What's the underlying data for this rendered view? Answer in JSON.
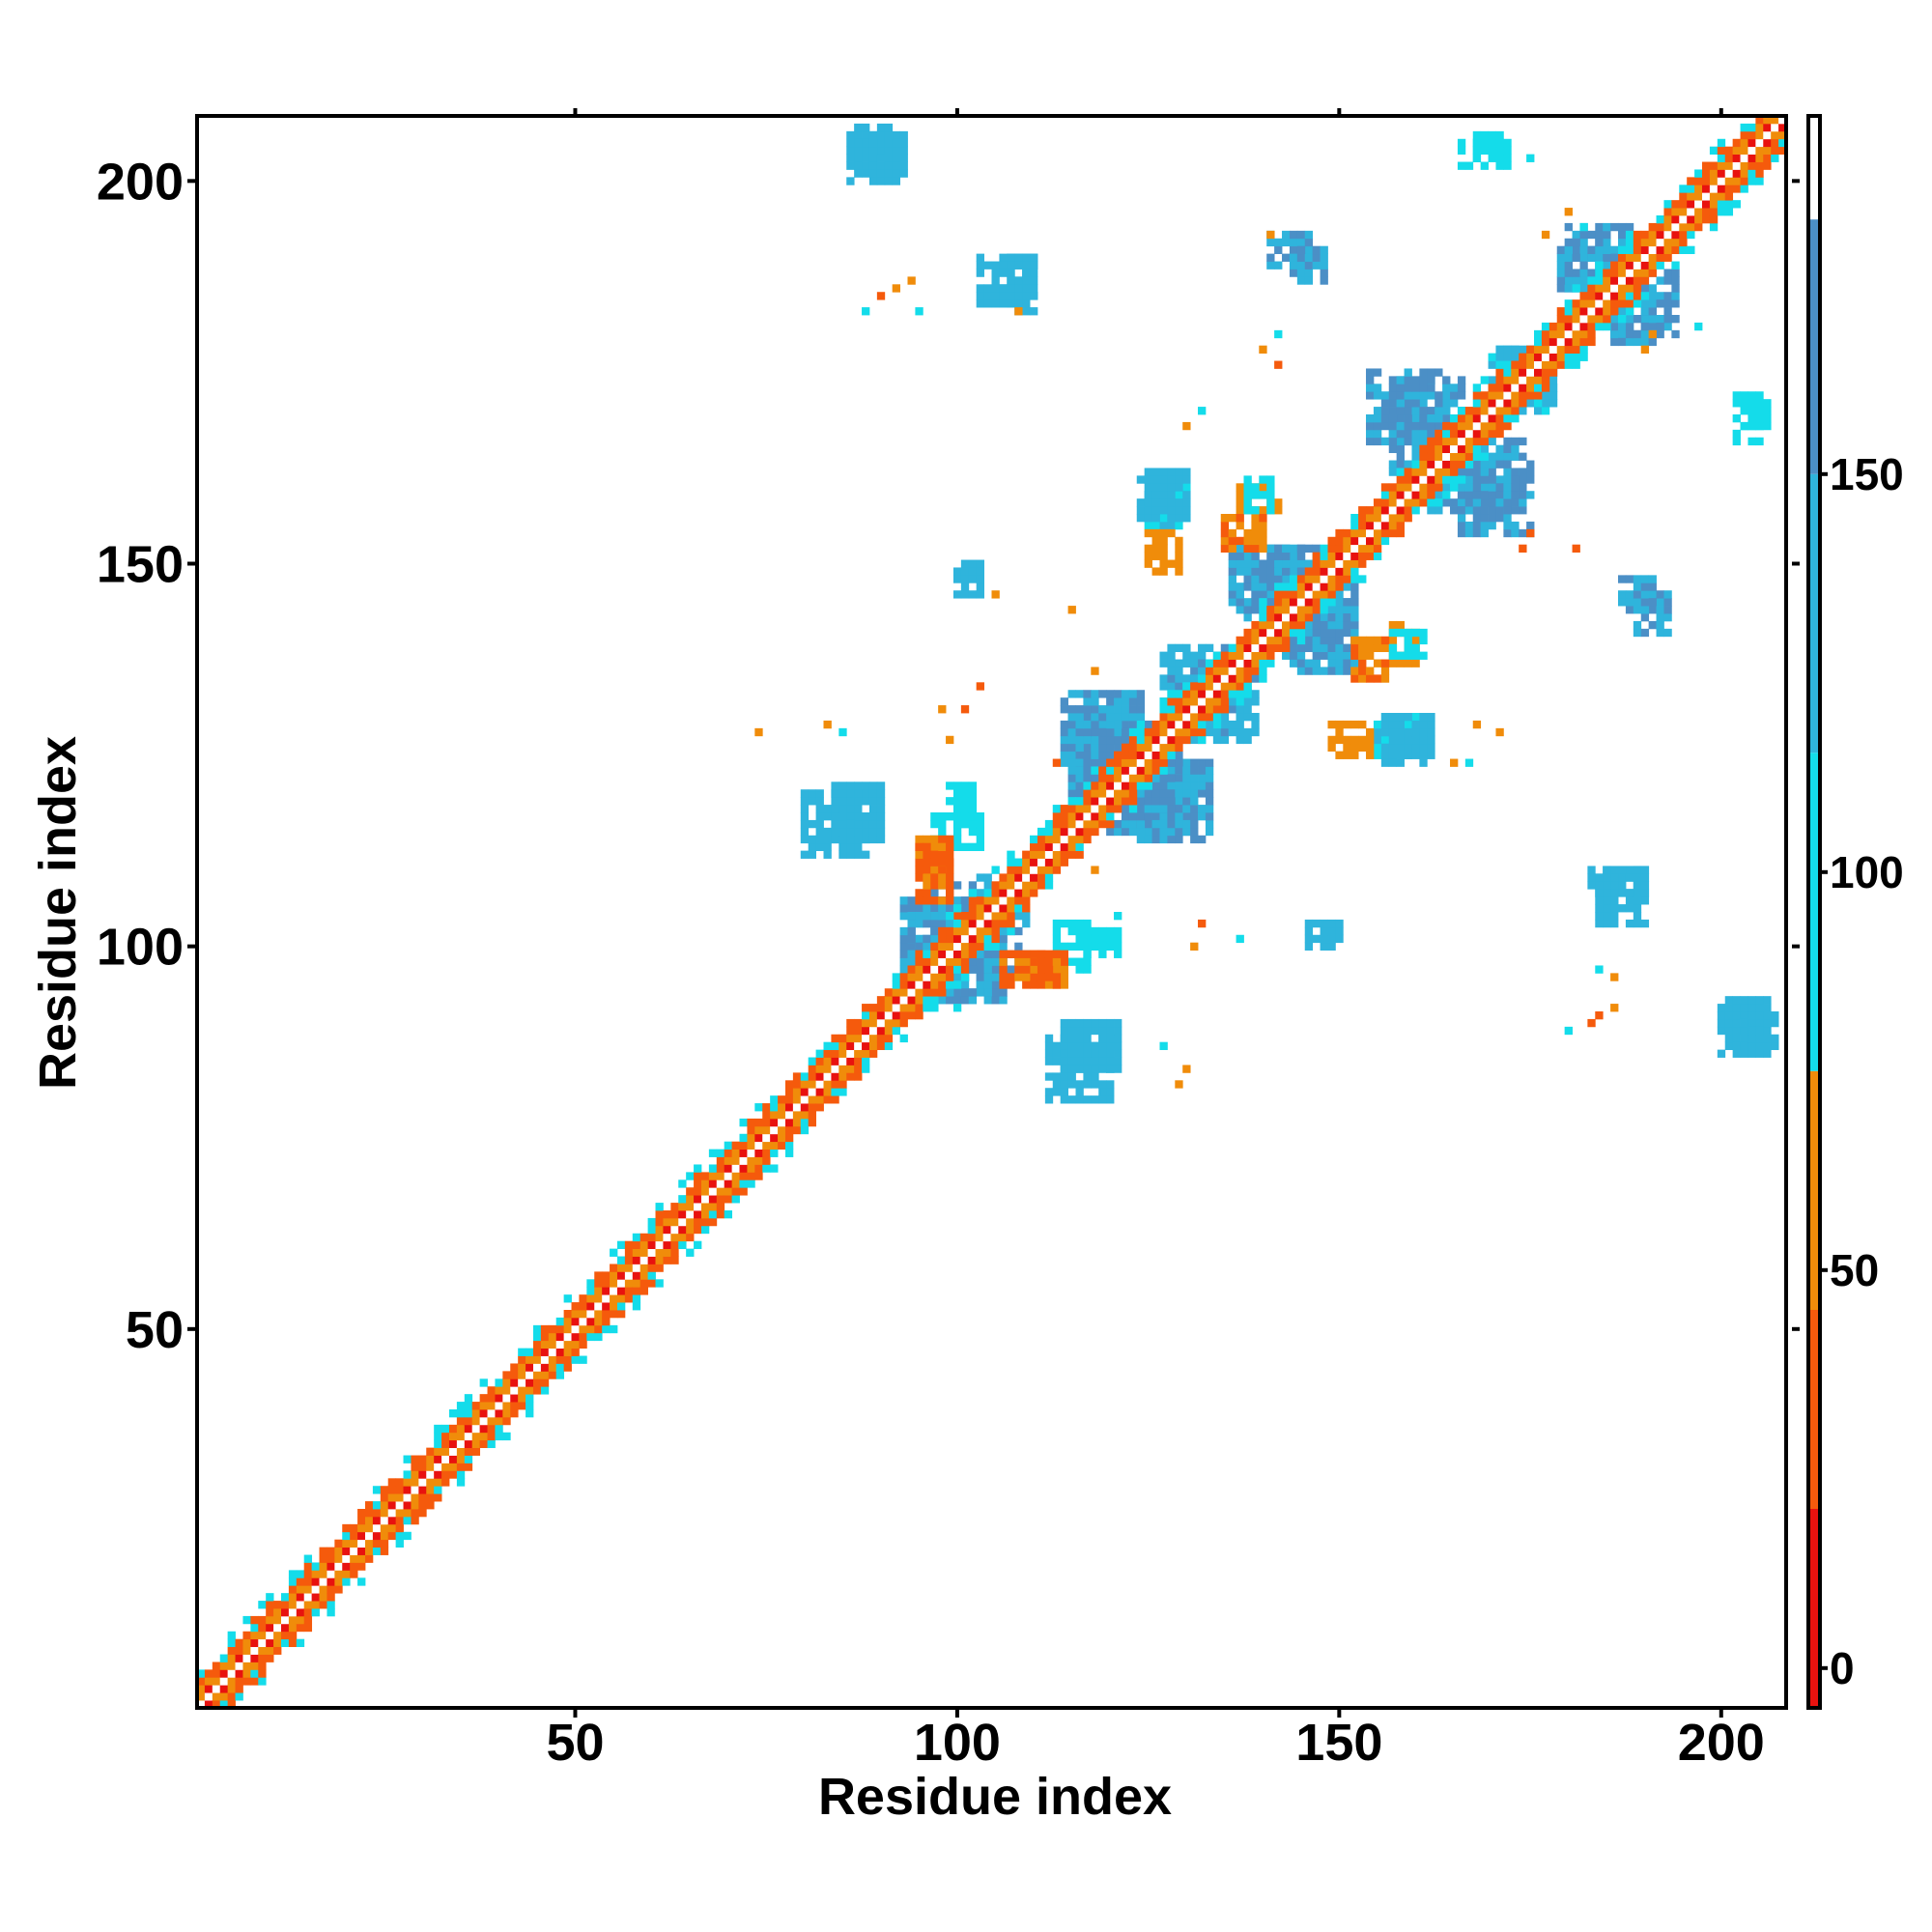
{
  "chart_data": {
    "type": "heatmap",
    "title": "",
    "xlabel": "Residue index",
    "ylabel": "Residue index",
    "xlim": [
      1,
      208
    ],
    "ylim": [
      1,
      208
    ],
    "x_ticks": [
      50,
      100,
      150,
      200
    ],
    "y_ticks": [
      50,
      100,
      150,
      200
    ],
    "x_tick_labels": [
      "50",
      "100",
      "150",
      "200"
    ],
    "y_tick_labels": [
      "50",
      "100",
      "150",
      "200"
    ],
    "grid": false,
    "legend": "colorbar-right",
    "colorbar": {
      "range": [
        -5,
        195
      ],
      "ticks": [
        0,
        50,
        100,
        150
      ],
      "tick_labels": [
        "0",
        "50",
        "100",
        "150"
      ],
      "bands": [
        {
          "from": -5,
          "to": 20,
          "color": "#e8120f"
        },
        {
          "from": 20,
          "to": 45,
          "color": "#f55a0c"
        },
        {
          "from": 45,
          "to": 75,
          "color": "#f08c0a"
        },
        {
          "from": 75,
          "to": 115,
          "color": "#14dcea"
        },
        {
          "from": 115,
          "to": 150,
          "color": "#2fb4dc"
        },
        {
          "from": 150,
          "to": 182,
          "color": "#4b8fc6"
        },
        {
          "from": 182,
          "to": 195,
          "color": "#ffffff"
        }
      ]
    },
    "diagonal_band": {
      "from": 1,
      "to": 208,
      "half_width": 5
    },
    "clusters": [
      {
        "x": [
          86,
          93
        ],
        "y": [
          200,
          206
        ],
        "value": 140
      },
      {
        "x": [
          166,
          172
        ],
        "y": [
          202,
          205
        ],
        "value": 105
      },
      {
        "x": [
          203,
          206
        ],
        "y": [
          168,
          171
        ],
        "value": 105
      },
      {
        "x": [
          202,
          207
        ],
        "y": [
          87,
          92
        ],
        "value": 140
      },
      {
        "x": [
          93,
          104
        ],
        "y": [
          94,
          106
        ],
        "value": 150
      },
      {
        "x": [
          102,
          109
        ],
        "y": [
          97,
          104
        ],
        "value": 150
      },
      {
        "x": [
          115,
          125
        ],
        "y": [
          120,
          130
        ],
        "value": 150
      },
      {
        "x": [
          124,
          133
        ],
        "y": [
          114,
          124
        ],
        "value": 150
      },
      {
        "x": [
          127,
          137
        ],
        "y": [
          130,
          139
        ],
        "value": 145
      },
      {
        "x": [
          137,
          147
        ],
        "y": [
          143,
          152
        ],
        "value": 150
      },
      {
        "x": [
          145,
          152
        ],
        "y": [
          136,
          145
        ],
        "value": 150
      },
      {
        "x": [
          157,
          166
        ],
        "y": [
          162,
          174
        ],
        "value": 150
      },
      {
        "x": [
          166,
          175
        ],
        "y": [
          154,
          163
        ],
        "value": 150
      },
      {
        "x": [
          171,
          178
        ],
        "y": [
          170,
          178
        ],
        "value": 120
      },
      {
        "x": [
          180,
          188
        ],
        "y": [
          186,
          194
        ],
        "value": 150
      },
      {
        "x": [
          186,
          192
        ],
        "y": [
          179,
          186
        ],
        "value": 150
      },
      {
        "x": [
          80,
          88
        ],
        "y": [
          112,
          120
        ],
        "value": 140
      },
      {
        "x": [
          114,
          121
        ],
        "y": [
          84,
          90
        ],
        "value": 140
      },
      {
        "x": [
          125,
          130
        ],
        "y": [
          155,
          160
        ],
        "value": 115
      },
      {
        "x": [
          156,
          162
        ],
        "y": [
          124,
          130
        ],
        "value": 140
      },
      {
        "x": [
          97,
          103
        ],
        "y": [
          113,
          117
        ],
        "value": 100
      },
      {
        "x": [
          103,
          110
        ],
        "y": [
          184,
          190
        ],
        "value": 140
      },
      {
        "x": [
          141,
          146
        ],
        "y": [
          189,
          193
        ],
        "value": 150
      },
      {
        "x": [
          183,
          190
        ],
        "y": [
          106,
          110
        ],
        "value": 140
      },
      {
        "x": [
          187,
          191
        ],
        "y": [
          144,
          148
        ],
        "value": 155
      },
      {
        "x": [
          137,
          142
        ],
        "y": [
          157,
          160
        ],
        "value": 60
      },
      {
        "x": [
          135,
          140
        ],
        "y": [
          152,
          156
        ],
        "value": 45
      },
      {
        "x": [
          149,
          154
        ],
        "y": [
          125,
          129
        ],
        "value": 60
      },
      {
        "x": [
          95,
          99
        ],
        "y": [
          110,
          114
        ],
        "value": 45
      },
      {
        "x": [
          146,
          150
        ],
        "y": [
          100,
          103
        ],
        "value": 140
      },
      {
        "x": [
          157,
          161
        ],
        "y": [
          138,
          141
        ],
        "value": 105
      },
      {
        "x": [
          106,
          113
        ],
        "y": [
          95,
          99
        ],
        "value": 40
      },
      {
        "x": [
          116,
          121
        ],
        "y": [
          99,
          102
        ],
        "value": 105
      }
    ],
    "specks": [
      [
        90,
        185,
        30
      ],
      [
        92,
        186,
        60
      ],
      [
        94,
        187,
        60
      ],
      [
        88,
        183,
        100
      ],
      [
        95,
        183,
        100
      ],
      [
        108,
        183,
        60
      ],
      [
        141,
        193,
        60
      ],
      [
        142,
        176,
        25
      ],
      [
        140,
        178,
        60
      ],
      [
        142,
        180,
        100
      ],
      [
        177,
        193,
        60
      ],
      [
        180,
        196,
        60
      ],
      [
        182,
        194,
        100
      ],
      [
        175,
        203,
        105
      ],
      [
        191,
        180,
        60
      ],
      [
        190,
        178,
        60
      ],
      [
        197,
        181,
        100
      ],
      [
        132,
        170,
        105
      ],
      [
        130,
        168,
        60
      ],
      [
        118,
        136,
        60
      ],
      [
        101,
        131,
        30
      ],
      [
        98,
        131,
        60
      ],
      [
        103,
        134,
        25
      ],
      [
        99,
        127,
        60
      ],
      [
        83,
        129,
        60
      ],
      [
        85,
        128,
        100
      ],
      [
        74,
        128,
        60
      ],
      [
        100,
        104,
        25
      ],
      [
        113,
        124,
        25
      ],
      [
        121,
        104,
        105
      ],
      [
        132,
        103,
        30
      ],
      [
        131,
        100,
        60
      ],
      [
        137,
        101,
        105
      ],
      [
        165,
        124,
        60
      ],
      [
        167,
        124,
        100
      ],
      [
        174,
        152,
        30
      ],
      [
        175,
        154,
        30
      ],
      [
        181,
        152,
        30
      ],
      [
        184,
        91,
        25
      ],
      [
        183,
        90,
        30
      ],
      [
        186,
        92,
        60
      ],
      [
        180,
        89,
        100
      ],
      [
        184,
        97,
        100
      ],
      [
        186,
        96,
        60
      ],
      [
        171,
        128,
        60
      ],
      [
        168,
        129,
        60
      ],
      [
        127,
        87,
        100
      ],
      [
        130,
        84,
        45
      ],
      [
        129,
        82,
        60
      ],
      [
        118,
        110,
        60
      ],
      [
        116,
        112,
        25
      ],
      [
        105,
        146,
        60
      ],
      [
        115,
        144,
        45
      ],
      [
        100,
        92,
        100
      ]
    ]
  }
}
